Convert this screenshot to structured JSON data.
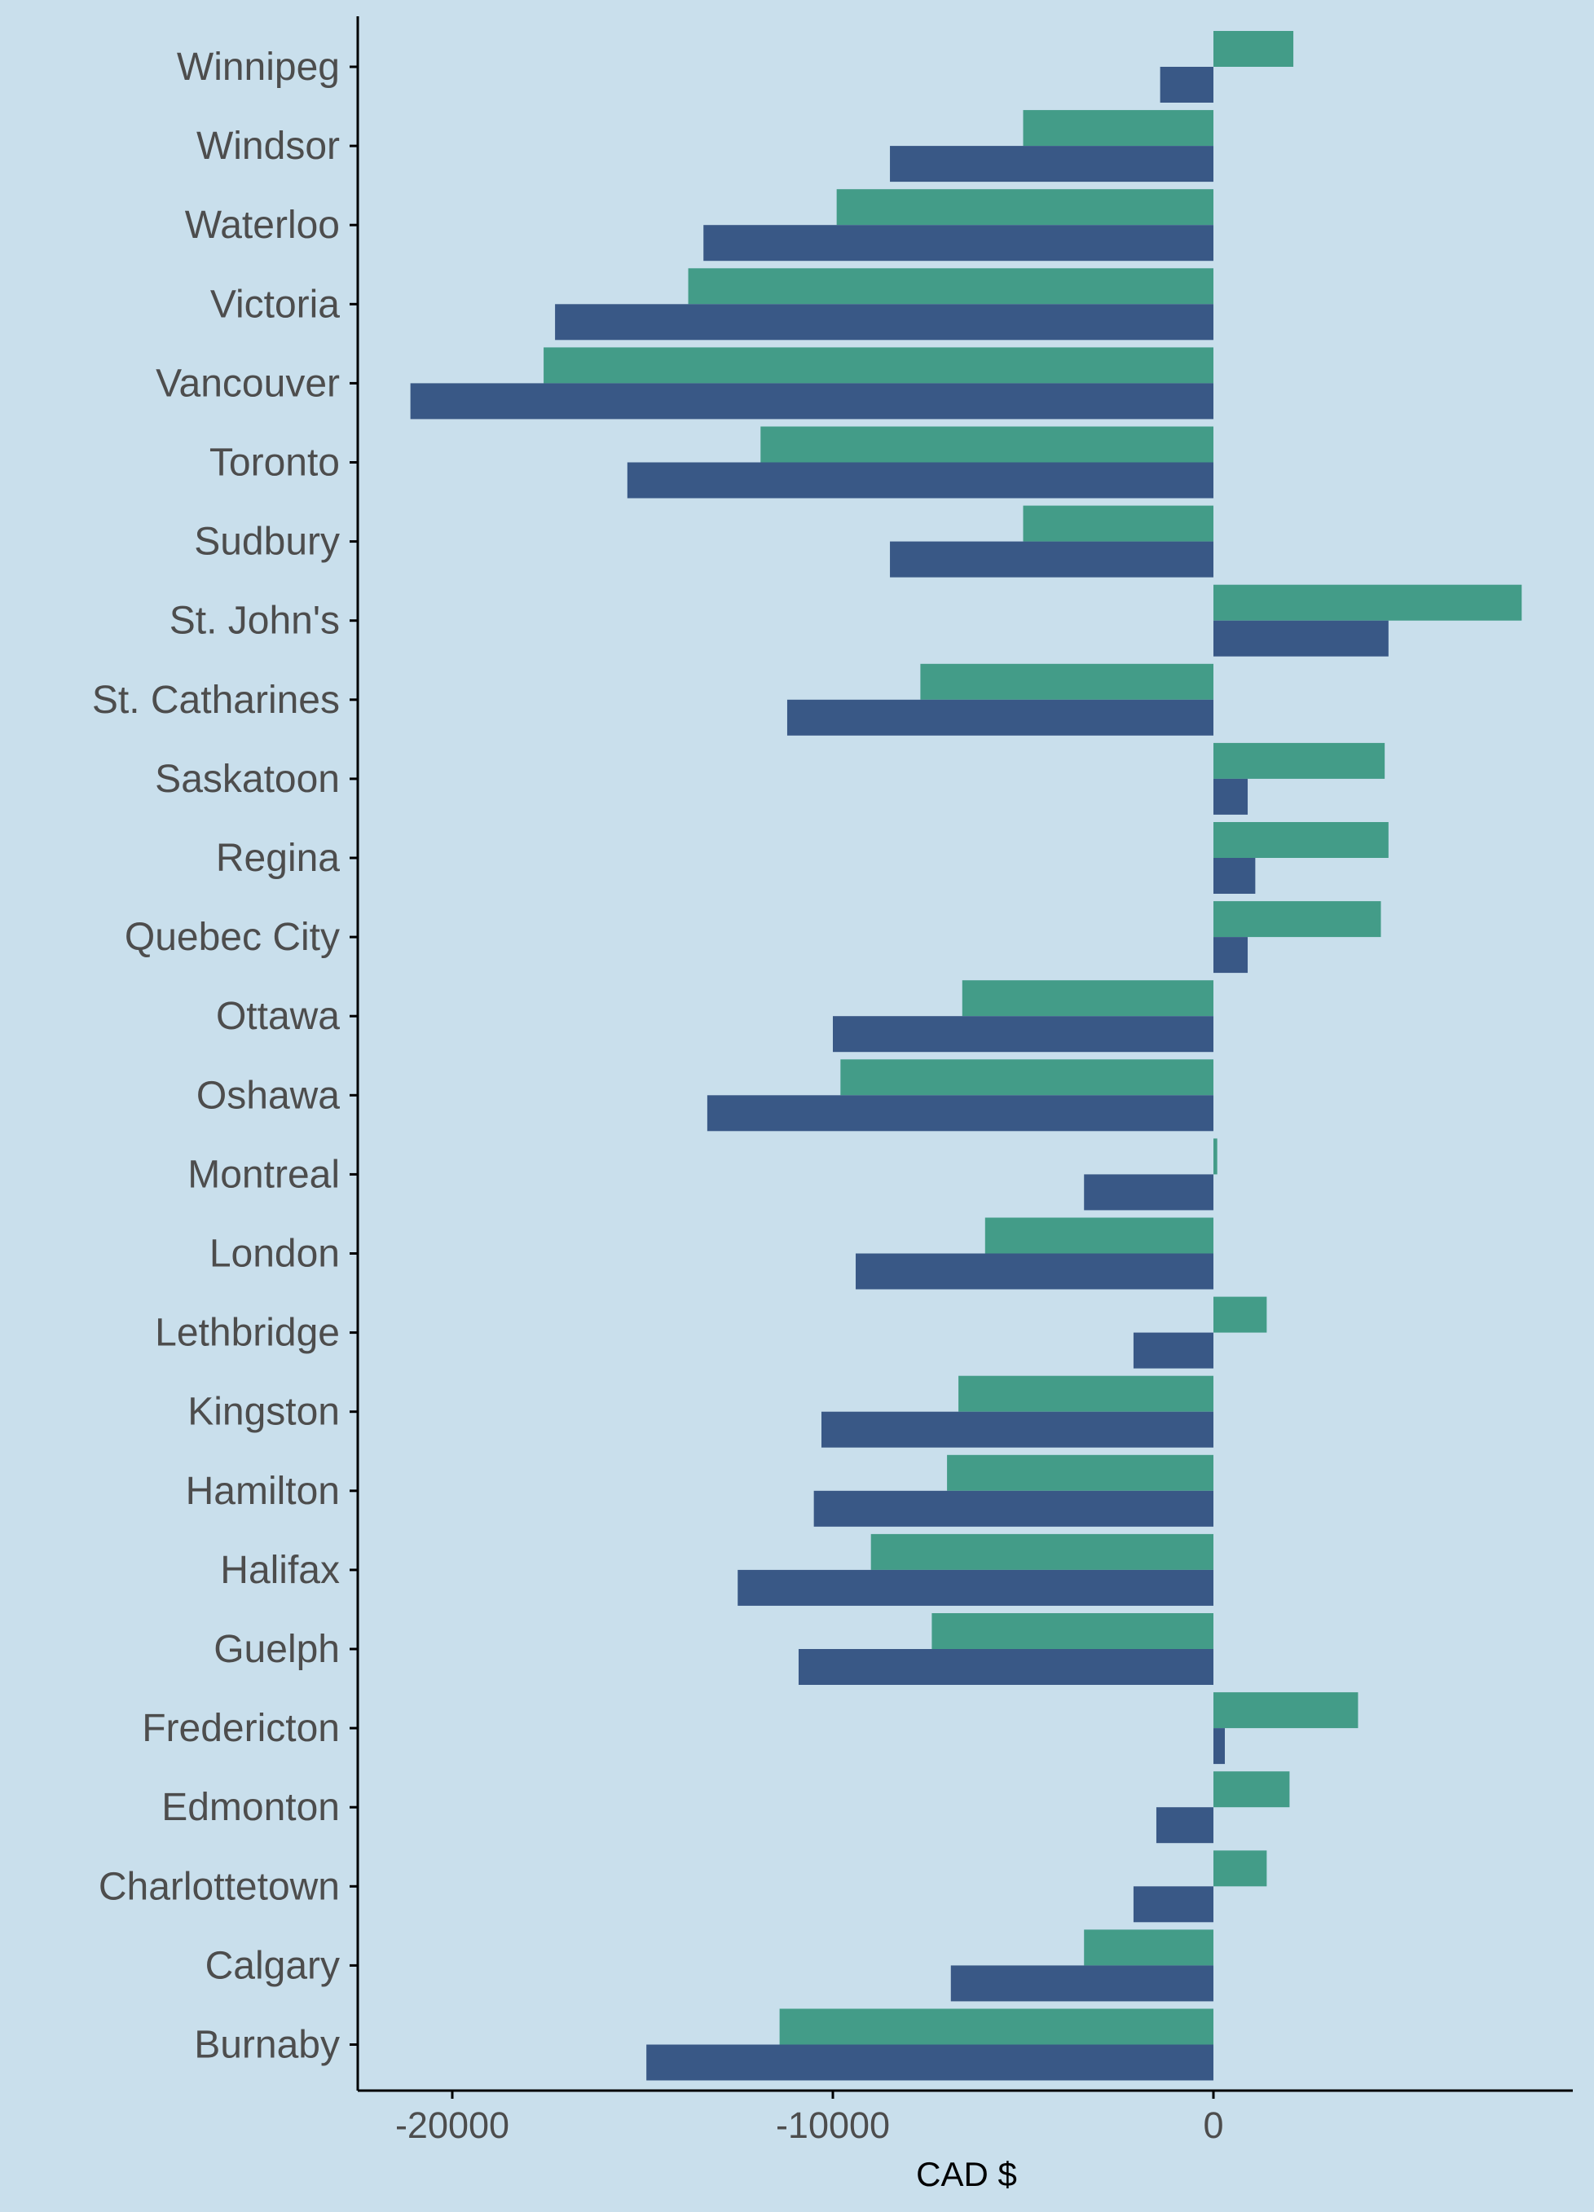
{
  "chart_data": {
    "type": "bar",
    "orientation": "horizontal",
    "title": "",
    "xlabel": "CAD $",
    "ylabel": "",
    "xlim": [
      -22500,
      9600
    ],
    "x_ticks": [
      -20000,
      -10000,
      0
    ],
    "x_tick_labels": [
      "-20000",
      "-10000",
      "0"
    ],
    "grid": false,
    "legend": "none",
    "categories": [
      "Winnipeg",
      "Windsor",
      "Waterloo",
      "Victoria",
      "Vancouver",
      "Toronto",
      "Sudbury",
      "St. John's",
      "St. Catharines",
      "Saskatoon",
      "Regina",
      "Quebec City",
      "Ottawa",
      "Oshawa",
      "Montreal",
      "London",
      "Lethbridge",
      "Kingston",
      "Hamilton",
      "Halifax",
      "Guelph",
      "Fredericton",
      "Edmonton",
      "Charlottetown",
      "Calgary",
      "Burnaby"
    ],
    "series": [
      {
        "color": "#439c88",
        "values": [
          2100,
          -5000,
          -9900,
          -13800,
          -17600,
          -11900,
          -5000,
          8100,
          -7700,
          4500,
          4600,
          4400,
          -6600,
          -9800,
          100,
          -6000,
          1400,
          -6700,
          -7000,
          -9000,
          -7400,
          3800,
          2000,
          1400,
          -3400,
          -11400
        ]
      },
      {
        "color": "#395886",
        "values": [
          -1400,
          -8500,
          -13400,
          -17300,
          -21100,
          -15400,
          -8500,
          4600,
          -11200,
          900,
          1100,
          900,
          -10000,
          -13300,
          -3400,
          -9400,
          -2100,
          -10300,
          -10500,
          -12500,
          -10900,
          300,
          -1500,
          -2100,
          -6900,
          -14900
        ]
      }
    ]
  },
  "colors": {
    "background": "#c9dfec",
    "axis": "#000000",
    "label": "#4d4d4d"
  }
}
